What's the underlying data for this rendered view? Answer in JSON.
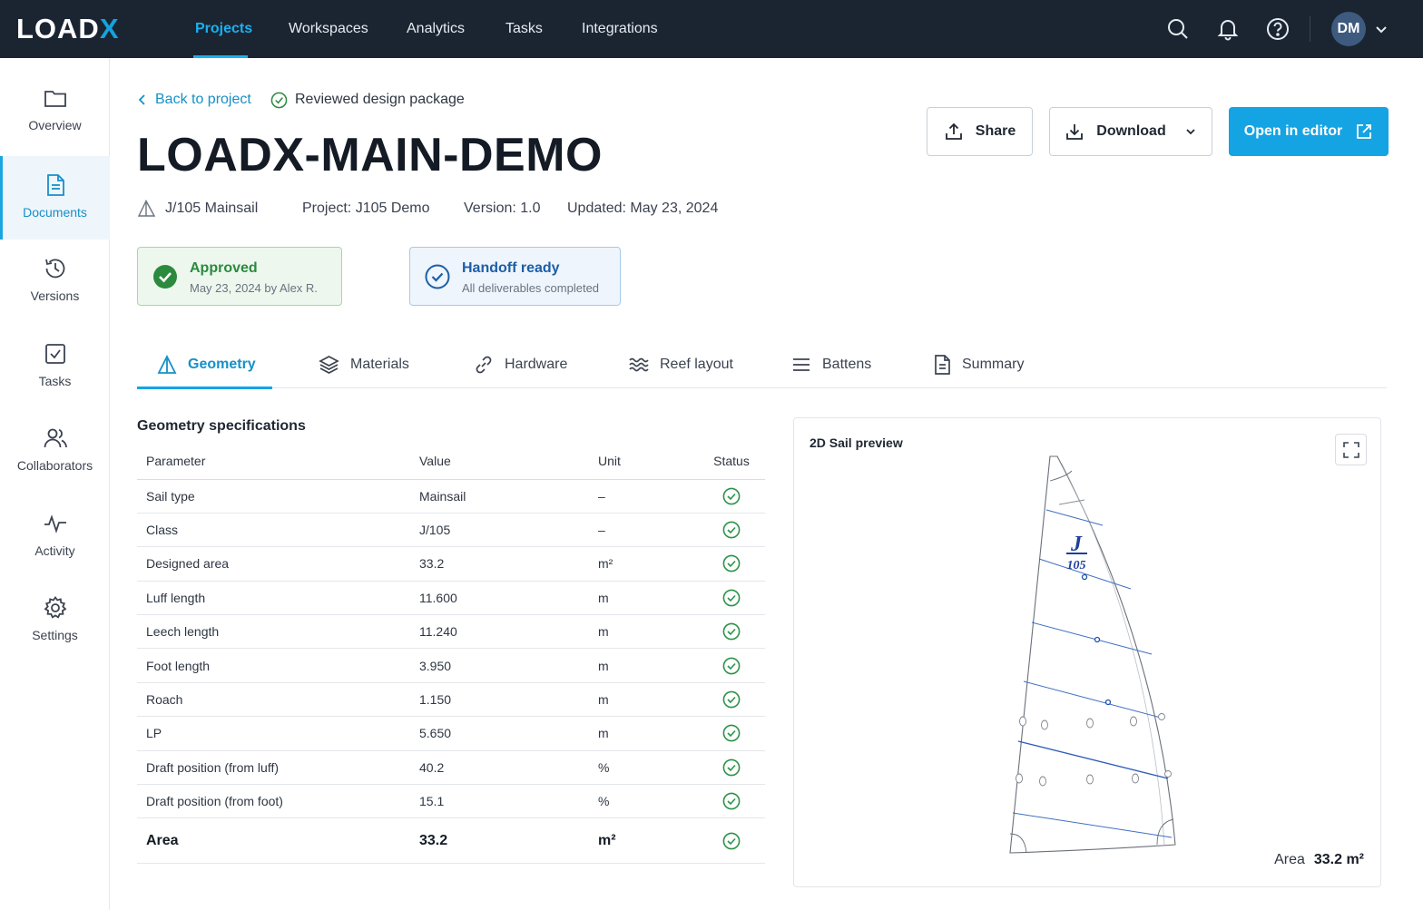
{
  "brand": {
    "logo_main": "LOAD",
    "logo_accent": "X",
    "accent_color": "#15a4e3"
  },
  "topnav": {
    "items": [
      "Projects",
      "Workspaces",
      "Analytics",
      "Tasks",
      "Integrations"
    ],
    "active": "Projects",
    "user_initials": "DM",
    "icons": [
      "search-icon",
      "bell-icon",
      "help-icon",
      "chevron-down-icon"
    ]
  },
  "sidebar": {
    "items": [
      {
        "label": "Overview",
        "icon": "folder-icon"
      },
      {
        "label": "Documents",
        "icon": "document-icon"
      },
      {
        "label": "Versions",
        "icon": "history-icon"
      },
      {
        "label": "Tasks",
        "icon": "checkbox-icon"
      },
      {
        "label": "Collaborators",
        "icon": "users-icon"
      },
      {
        "label": "Activity",
        "icon": "activity-icon"
      },
      {
        "label": "Settings",
        "icon": "gear-icon"
      }
    ],
    "active": "Documents"
  },
  "header": {
    "back_label": "Back to project",
    "reviewed_label": "Reviewed design package",
    "title": "LOADX-MAIN-DEMO",
    "sail_name": "J/105 Mainsail",
    "project": "Project: J105 Demo",
    "version": "Version: 1.0",
    "updated": "Updated: May 23, 2024"
  },
  "actions": {
    "share": "Share",
    "download": "Download",
    "open_editor": "Open in editor"
  },
  "status_cards": {
    "approved": {
      "title": "Approved",
      "subtitle": "May 23, 2024 by Alex R.",
      "color": "#2b8a3e"
    },
    "handoff": {
      "title": "Handoff ready",
      "subtitle": "All deliverables completed",
      "color": "#1c5ea8"
    }
  },
  "tabs": {
    "items": [
      "Geometry",
      "Materials",
      "Hardware",
      "Reef layout",
      "Battens",
      "Summary"
    ],
    "active": "Geometry"
  },
  "geometry": {
    "section_title": "Geometry specifications",
    "columns": [
      "Parameter",
      "Value",
      "Unit",
      "Status"
    ],
    "rows": [
      {
        "param": "Sail type",
        "value": "Mainsail",
        "unit": "–",
        "status": "ok"
      },
      {
        "param": "Class",
        "value": "J/105",
        "unit": "–",
        "status": "ok"
      },
      {
        "param": "Designed area",
        "value": "33.2",
        "unit": "m²",
        "status": "ok"
      },
      {
        "param": "Luff length",
        "value": "11.600",
        "unit": "m",
        "status": "ok"
      },
      {
        "param": "Leech length",
        "value": "11.240",
        "unit": "m",
        "status": "ok"
      },
      {
        "param": "Foot length",
        "value": "3.950",
        "unit": "m",
        "status": "ok"
      },
      {
        "param": "Roach",
        "value": "1.150",
        "unit": "m",
        "status": "ok"
      },
      {
        "param": "LP",
        "value": "5.650",
        "unit": "m",
        "status": "ok"
      },
      {
        "param": "Draft position (from luff)",
        "value": "40.2",
        "unit": "%",
        "status": "ok"
      },
      {
        "param": "Draft position (from foot)",
        "value": "15.1",
        "unit": "%",
        "status": "ok"
      }
    ],
    "total": {
      "param": "Area",
      "value": "33.2",
      "unit": "m²",
      "status": "ok"
    }
  },
  "preview": {
    "title": "2D Sail preview",
    "insignia_letter": "J",
    "insignia_number": "105",
    "area_label": "Area",
    "area_value": "33.2 m²"
  }
}
